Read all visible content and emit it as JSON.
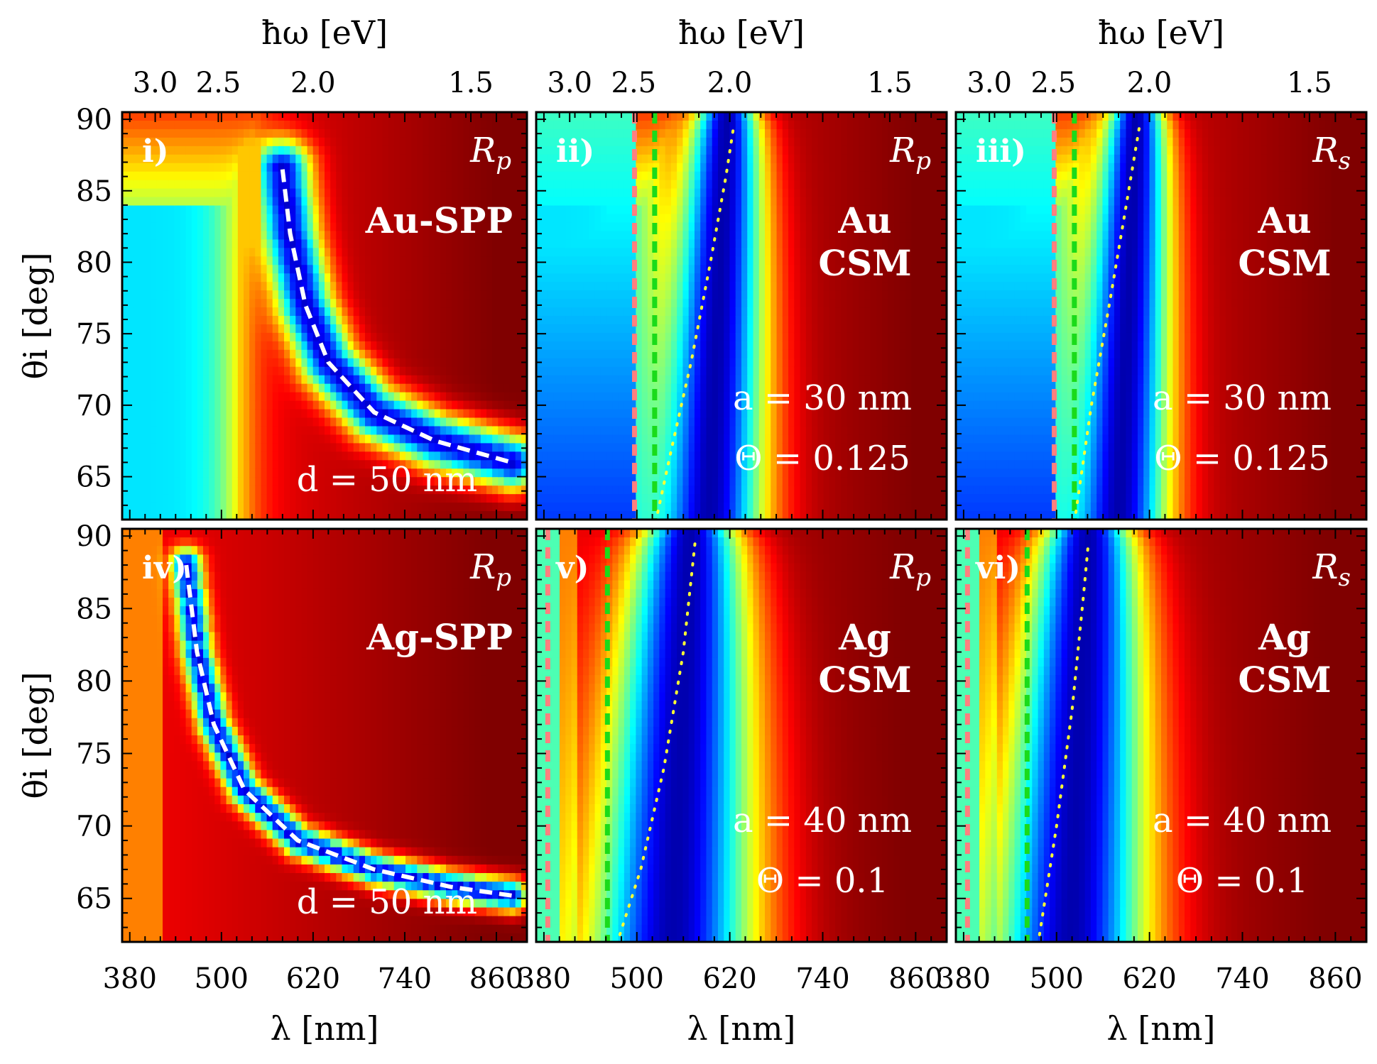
{
  "chart_data": [
    {
      "type": "heatmap",
      "tag": "i)",
      "signal": "Rp",
      "material": "Au-SPP",
      "params": [
        "d = 50 nm"
      ],
      "metal": "Au",
      "resonance": {
        "kind": "spp-dashed",
        "points": [
          [
            580,
            86.5
          ],
          [
            590,
            82
          ],
          [
            610,
            77
          ],
          [
            640,
            73
          ],
          [
            700,
            69.5
          ],
          [
            780,
            67.5
          ],
          [
            880,
            66
          ]
        ]
      }
    },
    {
      "type": "heatmap",
      "tag": "ii)",
      "signal": "Rp",
      "material": "Au CSM",
      "params": [
        "a = 30 nm",
        "Θ = 0.125"
      ],
      "metal": "Au",
      "center_nm": 615,
      "width_nm": 50,
      "vlines": [
        {
          "x": 497,
          "color": "#ff7f7f"
        },
        {
          "x": 523,
          "color": "#1adb1a"
        }
      ],
      "dotted": [
        [
          527,
          62.5
        ],
        [
          545,
          67
        ],
        [
          570,
          73
        ],
        [
          595,
          80
        ],
        [
          615,
          86
        ],
        [
          625,
          89.5
        ]
      ]
    },
    {
      "type": "heatmap",
      "tag": "iii)",
      "signal": "Rs",
      "material": "Au CSM",
      "params": [
        "a = 30 nm",
        "Θ = 0.125"
      ],
      "metal": "Au",
      "center_nm": 602,
      "width_nm": 45,
      "vlines": [
        {
          "x": 497,
          "color": "#ff7f7f"
        },
        {
          "x": 523,
          "color": "#1adb1a"
        }
      ],
      "dotted": [
        [
          525,
          62.5
        ],
        [
          545,
          70
        ],
        [
          568,
          77
        ],
        [
          590,
          84
        ],
        [
          607,
          89.5
        ]
      ]
    },
    {
      "type": "heatmap",
      "tag": "iv)",
      "signal": "Rp",
      "material": "Ag-SPP",
      "params": [
        "d = 50 nm"
      ],
      "metal": "Ag",
      "resonance": {
        "kind": "spp-dashed",
        "points": [
          [
            454,
            88
          ],
          [
            468,
            82
          ],
          [
            490,
            77
          ],
          [
            530,
            72.5
          ],
          [
            600,
            69
          ],
          [
            700,
            67
          ],
          [
            800,
            65.8
          ],
          [
            880,
            65.2
          ]
        ]
      }
    },
    {
      "type": "heatmap",
      "tag": "v)",
      "signal": "Rp",
      "material": "Ag CSM",
      "params": [
        "a = 40 nm",
        "Θ = 0.1"
      ],
      "metal": "Ag",
      "center_nm": 568,
      "width_nm": 75,
      "vlines": [
        {
          "x": 385,
          "color": "#ff7f7f"
        },
        {
          "x": 462,
          "color": "#1adb1a"
        }
      ],
      "dotted": [
        [
          478,
          62.5
        ],
        [
          505,
          67
        ],
        [
          535,
          74
        ],
        [
          560,
          82
        ],
        [
          575,
          89.5
        ]
      ]
    },
    {
      "type": "heatmap",
      "tag": "vi)",
      "signal": "Rs",
      "material": "Ag CSM",
      "params": [
        "a = 40 nm",
        "Θ = 0.1"
      ],
      "metal": "Ag",
      "center_nm": 540,
      "width_nm": 70,
      "vlines": [
        {
          "x": 385,
          "color": "#ff7f7f"
        },
        {
          "x": 462,
          "color": "#1adb1a"
        }
      ],
      "dotted": [
        [
          478,
          62.5
        ],
        [
          500,
          70
        ],
        [
          520,
          78
        ],
        [
          535,
          86
        ],
        [
          541,
          89.5
        ]
      ]
    }
  ],
  "axes": {
    "xlabel": "λ [nm]",
    "ylabel": "θi [deg]",
    "top_label": "ħω [eV]",
    "x_ticks": [
      380,
      500,
      620,
      740,
      860
    ],
    "y_ticks": [
      65,
      70,
      75,
      80,
      85,
      90
    ],
    "top_ticks": [
      3.0,
      2.5,
      2.0,
      1.5
    ],
    "top_tick_labels": [
      "3.0",
      "2.5",
      "2.0",
      "1.5"
    ],
    "xlim": [
      370,
      900
    ],
    "ylim": [
      62,
      90.5
    ]
  },
  "colormap": "jet"
}
